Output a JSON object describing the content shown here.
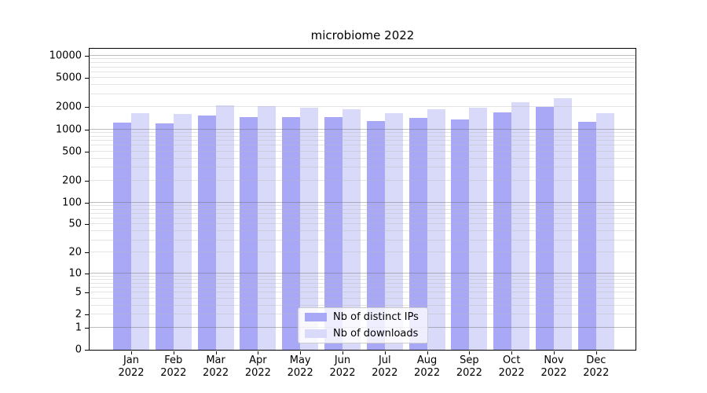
{
  "chart_data": {
    "type": "bar",
    "title": "microbiome 2022",
    "categories": [
      "Jan",
      "Feb",
      "Mar",
      "Apr",
      "May",
      "Jun",
      "Jul",
      "Aug",
      "Sep",
      "Oct",
      "Nov",
      "Dec"
    ],
    "x_year": "2022",
    "series": [
      {
        "name": "Nb of distinct IPs",
        "color": "#a8a8f7",
        "values": [
          1230,
          1210,
          1540,
          1450,
          1470,
          1450,
          1300,
          1420,
          1350,
          1720,
          2030,
          1260
        ]
      },
      {
        "name": "Nb of downloads",
        "color": "#d9d9fa",
        "values": [
          1660,
          1600,
          2120,
          2060,
          1960,
          1900,
          1660,
          1900,
          1960,
          2370,
          2680,
          1670
        ]
      }
    ],
    "yscale": "symlog",
    "ylim": [
      0,
      12500
    ],
    "ytick_labels": [
      "0",
      "1",
      "2",
      "5",
      "10",
      "20",
      "50",
      "100",
      "200",
      "500",
      "1000",
      "2000",
      "5000",
      "10000"
    ],
    "xlabel": "",
    "ylabel": "",
    "grid": true,
    "legend": {
      "entries": [
        "Nb of distinct IPs",
        "Nb of downloads"
      ],
      "position": "lower-center"
    }
  }
}
